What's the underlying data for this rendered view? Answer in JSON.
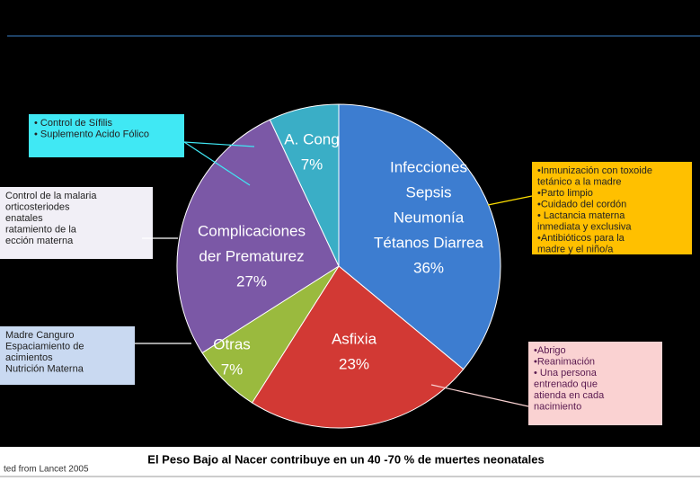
{
  "chart_data": {
    "type": "pie",
    "categories": [
      [
        "Infecciones",
        "Sepsis",
        "Neumonía",
        "Tétanos Diarrea"
      ],
      [
        "Asfixia"
      ],
      [
        "Otras"
      ],
      [
        "Complicaciones",
        "der Prematurez"
      ],
      [
        "A. Cong"
      ]
    ],
    "values": [
      36,
      23,
      7,
      27,
      7
    ],
    "value_labels": [
      "36%",
      "23%",
      "7%",
      "27%",
      "7%"
    ],
    "colors": [
      "#3d7dd0",
      "#d23934",
      "#9aba3e",
      "#7b58a6",
      "#3aaec6"
    ],
    "annotations": [
      {
        "lines": [
          "• Control de Sífilis",
          "• Suplemento Acido Fólico"
        ],
        "color": "#40e8f4"
      },
      {
        "lines": [
          "Control de la malaria",
          "orticosteriodes",
          "enatales",
          "ratamiento de la",
          "ección materna"
        ],
        "color": "#f1eff6"
      },
      {
        "lines": [
          "Madre Canguro",
          "Espaciamiento de",
          "acimientos",
          "Nutrición Materna"
        ],
        "color": "#c9d9f1"
      },
      {
        "lines": [
          "•Inmunización con toxoide",
          "tetánico a la madre",
          "•Parto limpio",
          "•Cuidado del cordón",
          "• Lactancia materna",
          "inmediata y exclusiva",
          "•Antibióticos  para la",
          "madre y el niño/a"
        ],
        "color": "#ffc000"
      },
      {
        "lines": [
          "•Abrigo",
          "•Reanimación",
          "• Una persona",
          "entrenado que",
          "atienda en cada",
          "nacimiento"
        ],
        "color": "#fad2d2"
      }
    ],
    "caption": "El Peso Bajo al Nacer contribuye  en un 40 -70 % de muertes neonatales",
    "source": "ted from Lancet 2005"
  }
}
